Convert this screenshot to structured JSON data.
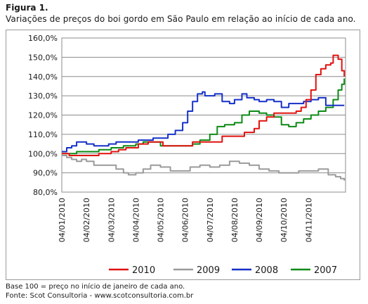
{
  "figure": {
    "title": "Figura 1.",
    "subtitle": "Variações de preços do boi gordo em São Paulo em relação ao início de cada ano."
  },
  "footnotes": {
    "base": "Base 100 = preço no início de janeiro de cada ano.",
    "source": "Fonte: Scot Consultoria - www.scotconsultoria.com.br"
  },
  "chart_data": {
    "type": "line",
    "title": "",
    "xlabel": "",
    "ylabel": "",
    "ylim": [
      80,
      160
    ],
    "yticks": [
      80,
      90,
      100,
      110,
      120,
      130,
      140,
      150,
      160
    ],
    "ytick_labels": [
      "80,0%",
      "90,0%",
      "100,0%",
      "110,0%",
      "120,0%",
      "130,0%",
      "140,0%",
      "150,0%",
      "160,0%"
    ],
    "xlim": [
      0,
      11.5
    ],
    "x_ticks": [
      0,
      1,
      2,
      3,
      4,
      5,
      6,
      7,
      8,
      9,
      10
    ],
    "x_tick_labels": [
      "04/01/2010",
      "04/02/2010",
      "04/03/2010",
      "04/04/2010",
      "04/05/2010",
      "04/06/2010",
      "04/07/2010",
      "04/08/2010",
      "04/09/2010",
      "04/10/2010",
      "04/11/2010"
    ],
    "grid": "horizontal",
    "legend_position": "bottom",
    "series": [
      {
        "name": "2010",
        "color": "#e0120f",
        "x": [
          0,
          0.3,
          0.7,
          1.0,
          1.5,
          2.0,
          2.3,
          2.6,
          2.9,
          3.1,
          3.5,
          3.8,
          4.1,
          4.5,
          5.0,
          5.3,
          5.6,
          6.0,
          6.5,
          7.0,
          7.4,
          7.8,
          8.0,
          8.3,
          8.6,
          9.0,
          9.3,
          9.5,
          9.7,
          9.9,
          10.1,
          10.3,
          10.5,
          10.7,
          10.9,
          11.0,
          11.1,
          11.2,
          11.35,
          11.45
        ],
        "y": [
          100,
          99,
          99,
          99,
          100,
          101,
          102,
          103,
          103,
          105,
          106,
          106,
          104,
          104,
          104,
          106,
          106,
          106,
          109,
          109,
          111,
          113,
          117,
          119,
          121,
          121,
          121,
          122,
          124,
          128,
          133,
          141,
          144,
          146,
          147,
          151,
          151,
          149,
          143,
          140
        ]
      },
      {
        "name": "2009",
        "color": "#9b9b9b",
        "x": [
          0,
          0.2,
          0.4,
          0.6,
          0.8,
          1.0,
          1.3,
          1.6,
          1.9,
          2.2,
          2.5,
          2.7,
          3.0,
          3.3,
          3.6,
          4.0,
          4.4,
          4.8,
          5.2,
          5.6,
          6.0,
          6.4,
          6.8,
          7.2,
          7.6,
          8.0,
          8.4,
          8.8,
          9.2,
          9.6,
          10.0,
          10.4,
          10.8,
          11.1,
          11.3,
          11.45
        ],
        "y": [
          99,
          98,
          97,
          96,
          97,
          96,
          94,
          94,
          94,
          92,
          90,
          89,
          90,
          92,
          94,
          93,
          91,
          91,
          93,
          94,
          93,
          94,
          96,
          95,
          94,
          92,
          91,
          90,
          90,
          91,
          91,
          92,
          89,
          88,
          87,
          86
        ]
      },
      {
        "name": "2008",
        "color": "#1530c8",
        "x": [
          0,
          0.2,
          0.4,
          0.6,
          0.8,
          1.0,
          1.3,
          1.6,
          1.9,
          2.2,
          2.5,
          2.8,
          3.1,
          3.4,
          3.7,
          4.0,
          4.3,
          4.6,
          4.9,
          5.1,
          5.3,
          5.5,
          5.7,
          5.8,
          6.0,
          6.2,
          6.5,
          6.8,
          7.0,
          7.3,
          7.5,
          7.8,
          8.0,
          8.3,
          8.6,
          8.9,
          9.2,
          9.5,
          9.8,
          10.1,
          10.4,
          10.7,
          11.0,
          11.45
        ],
        "y": [
          101,
          103,
          104,
          106,
          106,
          105,
          104,
          104,
          105,
          106,
          106,
          106,
          107,
          107,
          108,
          108,
          110,
          112,
          116,
          122,
          127,
          131,
          132,
          130,
          130,
          131,
          127,
          126,
          128,
          131,
          129,
          128,
          127,
          128,
          127,
          124,
          126,
          126,
          127,
          128,
          129,
          125,
          125,
          125
        ]
      },
      {
        "name": "2007",
        "color": "#0b8a14",
        "x": [
          0,
          0.3,
          0.6,
          1.0,
          1.5,
          2.0,
          2.5,
          3.0,
          3.3,
          3.6,
          4.0,
          4.5,
          5.0,
          5.3,
          5.6,
          6.0,
          6.3,
          6.6,
          7.0,
          7.3,
          7.6,
          8.0,
          8.3,
          8.6,
          8.9,
          9.2,
          9.5,
          9.8,
          10.1,
          10.4,
          10.7,
          11.0,
          11.2,
          11.35,
          11.45
        ],
        "y": [
          100,
          100,
          101,
          101,
          102,
          103,
          104,
          105,
          106,
          106,
          104,
          104,
          104,
          105,
          107,
          110,
          114,
          115,
          116,
          120,
          122,
          121,
          120,
          119,
          115,
          114,
          116,
          118,
          120,
          122,
          124,
          128,
          133,
          136,
          139
        ]
      }
    ]
  }
}
